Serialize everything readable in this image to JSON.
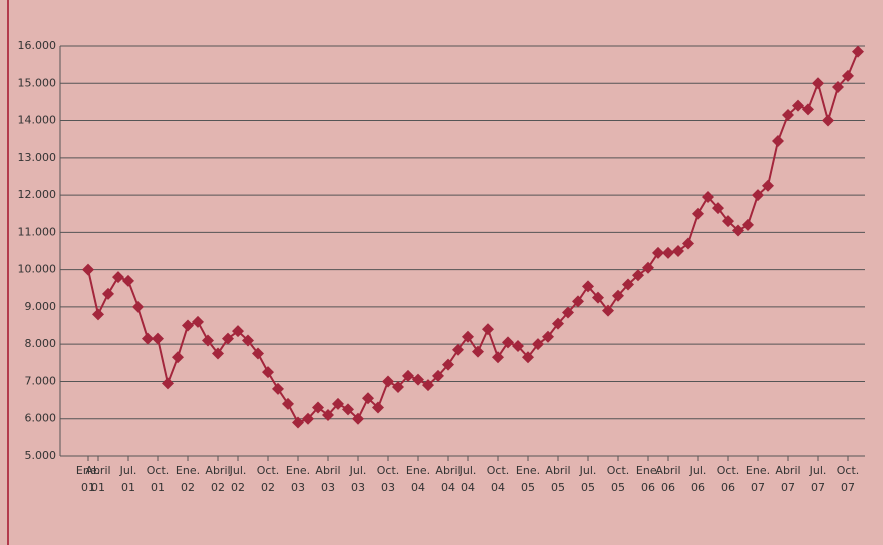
{
  "chart_data": {
    "type": "line",
    "categories": [
      "Ene. 01",
      "Abril 01",
      null,
      null,
      "Jul. 01",
      null,
      null,
      "Oct. 01",
      null,
      null,
      "Ene. 02",
      null,
      null,
      "Abril 02",
      null,
      "Jul. 02",
      null,
      null,
      "Oct. 02",
      null,
      null,
      "Ene. 03",
      null,
      null,
      "Abril 03",
      null,
      null,
      "Jul. 03",
      null,
      null,
      "Oct. 03",
      null,
      null,
      "Ene. 04",
      null,
      null,
      "Abril 04",
      null,
      "Jul. 04",
      null,
      null,
      "Oct. 04",
      null,
      null,
      "Ene. 05",
      null,
      null,
      "Abril 05",
      null,
      null,
      "Jul. 05",
      null,
      null,
      "Oct. 05",
      null,
      null,
      "Ene. 06",
      null,
      "Abril 06",
      null,
      null,
      "Jul. 06",
      null,
      null,
      "Oct. 06",
      null,
      null,
      "Ene. 07",
      null,
      null,
      "Abril 07",
      null,
      null,
      "Jul. 07",
      null,
      null,
      "Oct. 07",
      null
    ],
    "values": [
      10000,
      8800,
      9350,
      9800,
      9700,
      9000,
      8150,
      8150,
      6950,
      7650,
      8500,
      8600,
      8100,
      7750,
      8150,
      8350,
      8100,
      7750,
      7250,
      6800,
      6400,
      5900,
      6000,
      6300,
      6100,
      6400,
      6250,
      6000,
      6550,
      6300,
      7000,
      6850,
      7150,
      7050,
      6900,
      7150,
      7450,
      7850,
      8200,
      7800,
      8400,
      7650,
      8050,
      7950,
      7650,
      8000,
      8200,
      8550,
      8850,
      9150,
      9550,
      9250,
      8900,
      9300,
      9600,
      9850,
      10050,
      10450,
      10450,
      10500,
      10700,
      11500,
      11950,
      11650,
      11300,
      11050,
      11200,
      12000,
      12250,
      13450,
      14150,
      14400,
      14300,
      15000,
      14000,
      14900,
      15200,
      15850
    ],
    "color": "#a3263c",
    "ylim": [
      5000,
      16000
    ],
    "yticks": [
      {
        "value": 5000,
        "label": "5.000"
      },
      {
        "value": 6000,
        "label": "6.000"
      },
      {
        "value": 7000,
        "label": "7.000"
      },
      {
        "value": 8000,
        "label": "8.000"
      },
      {
        "value": 9000,
        "label": "9.000"
      },
      {
        "value": 10000,
        "label": "10.000"
      },
      {
        "value": 11000,
        "label": "11.000"
      },
      {
        "value": 12000,
        "label": "12.000"
      },
      {
        "value": 13000,
        "label": "13.000"
      },
      {
        "value": 14000,
        "label": "14.000"
      },
      {
        "value": 15000,
        "label": "15.000"
      },
      {
        "value": 16000,
        "label": "16.000"
      }
    ],
    "grid": true
  }
}
